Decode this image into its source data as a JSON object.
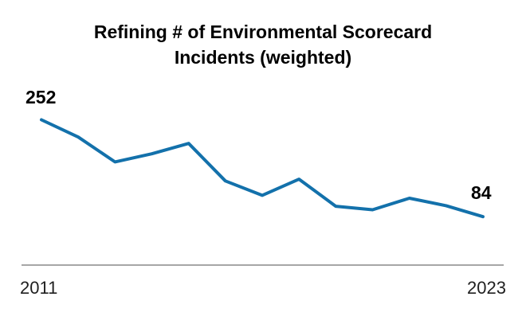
{
  "chart": {
    "title_line1": "Refining # of Environmental Scorecard",
    "title_line2": "Incidents (weighted)",
    "first_point_label": "252",
    "last_point_label": "84",
    "x_axis": {
      "left_label": "2011",
      "right_label": "2023"
    },
    "colors": {
      "line": "#1371ab",
      "axis_line": "#a6a6a6",
      "title_text": "#000000",
      "axis_label_text": "#1f1f1f",
      "data_label_text": "#000000",
      "background": "#ffffff"
    }
  },
  "chart_data": {
    "type": "line",
    "title": "Refining # of Environmental Scorecard Incidents (weighted)",
    "categories": [
      2011,
      2012,
      2013,
      2014,
      2015,
      2016,
      2017,
      2018,
      2019,
      2020,
      2021,
      2022,
      2023
    ],
    "values": [
      252,
      222,
      179,
      193,
      211,
      146,
      121,
      149,
      102,
      96,
      116,
      103,
      84
    ],
    "labeled_points": [
      {
        "category": 2011,
        "value": 252
      },
      {
        "category": 2023,
        "value": 84
      }
    ],
    "x_tick_labels": [
      "2011",
      "2023"
    ],
    "xlabel": "",
    "ylabel": "",
    "ylim": [
      0,
      280
    ],
    "grid": false,
    "legend": false,
    "line_color": "#1371ab"
  }
}
